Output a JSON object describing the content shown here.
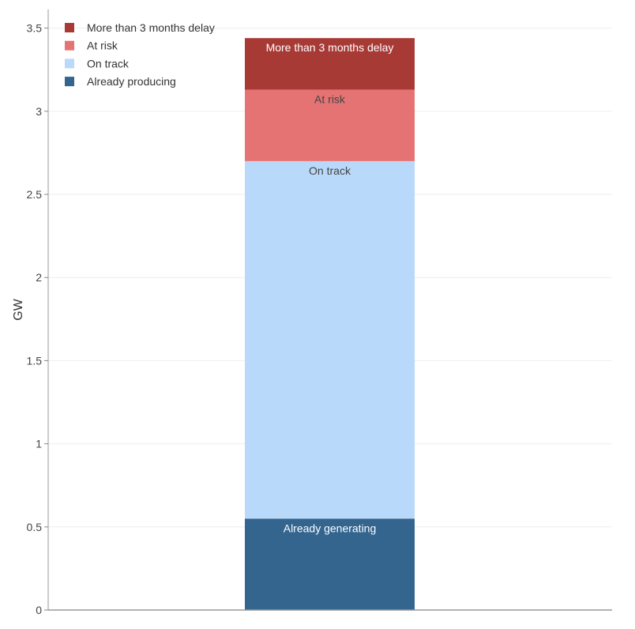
{
  "chart_data": {
    "type": "bar",
    "ylabel": "GW",
    "ylim": [
      0,
      3.6
    ],
    "yticks": [
      "0",
      "0.5",
      "1",
      "1.5",
      "2",
      "2.5",
      "3",
      "3.5"
    ],
    "ytick_values": [
      0,
      0.5,
      1,
      1.5,
      2,
      2.5,
      3,
      3.5
    ],
    "grid": true,
    "legend_position": "top-left",
    "legend": [
      {
        "label": "More than 3 months delay",
        "color": "#a83a36"
      },
      {
        "label": "At risk",
        "color": "#e57373"
      },
      {
        "label": "On track",
        "color": "#b8d9fa"
      },
      {
        "label": "Already producing",
        "color": "#33658f"
      }
    ],
    "stack": [
      {
        "label": "Already generating",
        "value": 0.55,
        "color": "#33658f",
        "text_color": "#ffffff"
      },
      {
        "label": "On track",
        "value": 2.15,
        "color": "#b8d9fa",
        "text_color": "#444444"
      },
      {
        "label": "At risk",
        "value": 0.43,
        "color": "#e57373",
        "text_color": "#444444"
      },
      {
        "label": "More than 3 months delay",
        "value": 0.31,
        "color": "#a83a36",
        "text_color": "#ffffff"
      }
    ]
  }
}
